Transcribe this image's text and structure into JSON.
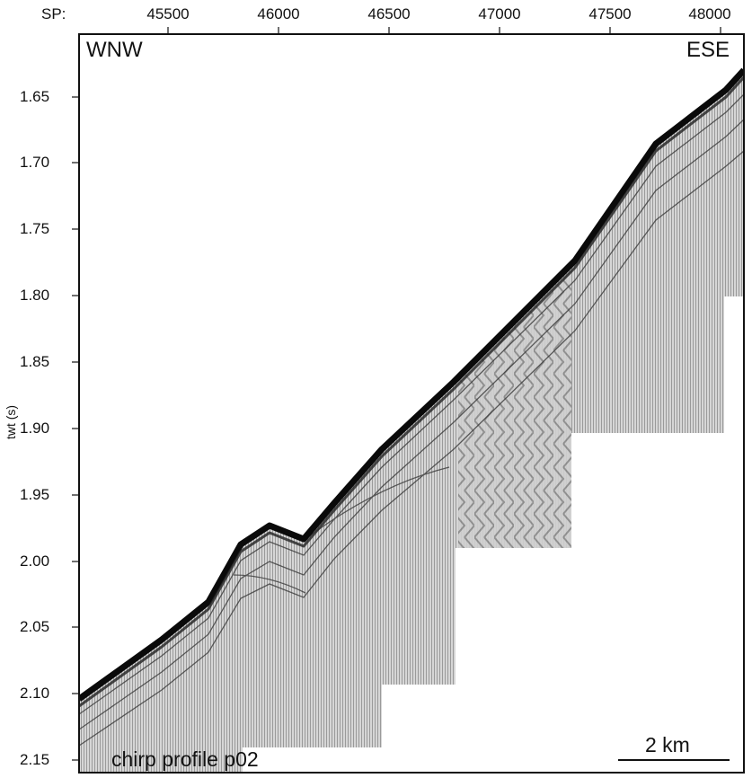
{
  "header": {
    "sp_label": "SP:",
    "sp_ticks": [
      "45500",
      "46000",
      "46500",
      "47000",
      "47500",
      "48000"
    ]
  },
  "axes": {
    "y_title": "twt (s)",
    "y_ticks": [
      "1.65",
      "1.70",
      "1.75",
      "1.80",
      "1.85",
      "1.90",
      "1.95",
      "2.00",
      "2.05",
      "2.10",
      "2.15"
    ]
  },
  "orientation": {
    "left": "WNW",
    "right": "ESE"
  },
  "profile_label": "chirp profile p02",
  "scale_bar": {
    "label": "2 km"
  },
  "colors": {
    "frame": "#111111",
    "seafloor": "#0a0a0a",
    "sediment": "#8c8c8c",
    "background": "#ffffff"
  }
}
